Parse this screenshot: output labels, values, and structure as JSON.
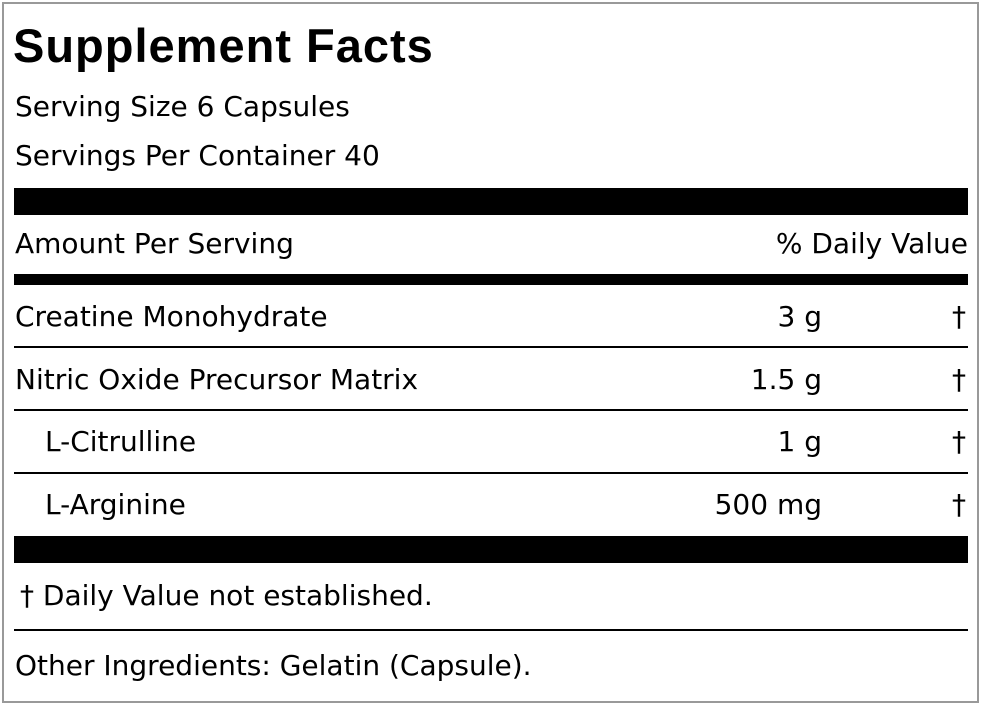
{
  "title": "Supplement Facts",
  "serving_size": "Serving Size 6 Capsules",
  "servings_per_container": "Servings Per Container 40",
  "amount_header": "Amount Per Serving",
  "dv_header": "% Daily Value",
  "rows": [
    {
      "name": "Creatine Monohydrate",
      "amount": "3 g",
      "dv": "†"
    },
    {
      "name": "Nitric Oxide Precursor Matrix",
      "amount": "1.5 g",
      "dv": "†"
    },
    {
      "name": "L-Citrulline",
      "amount": "1 g",
      "dv": "†"
    },
    {
      "name": "L-Arginine",
      "amount": "500 mg",
      "dv": "†"
    }
  ],
  "footnote": "† Daily Value not established.",
  "other_ingredients": "Other Ingredients: Gelatin (Capsule)."
}
